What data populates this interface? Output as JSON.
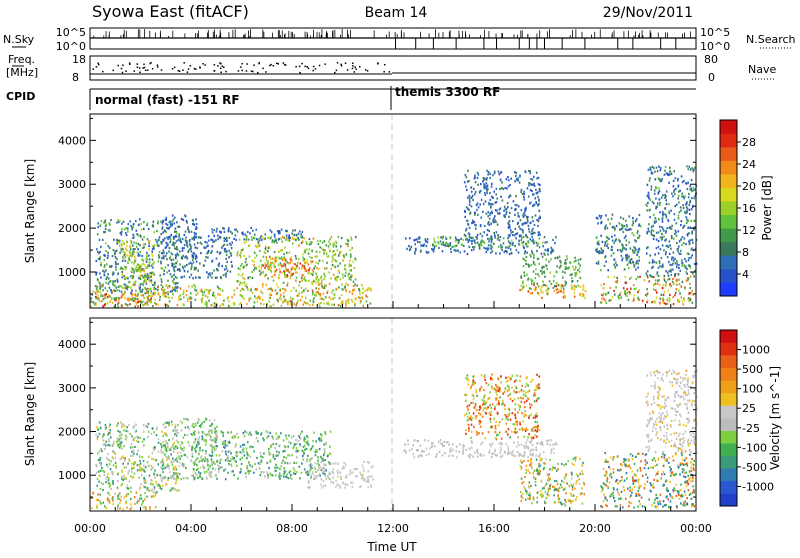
{
  "header": {
    "title": "Syowa East (fitACF)",
    "beam": "Beam 14",
    "date": "29/Nov/2011"
  },
  "status_panels": {
    "nsky_label": "N.Sky",
    "nsearch_label": "N.Search",
    "nsky_ticks": [
      "10^5",
      "10^0"
    ],
    "nsearch_ticks": [
      "10^5",
      "10^0"
    ],
    "freq_label_1": "Freq.",
    "freq_label_2": "[MHz]",
    "freq_ticks": [
      "18",
      "8"
    ],
    "nave_label": "Nave",
    "nave_ticks": [
      "80",
      "0"
    ],
    "cpid_label": "CPID",
    "cpid_segments": [
      {
        "label": "normal (fast) -151 RF",
        "start": "00:00",
        "end": "11:56"
      },
      {
        "label": "themis 3300 RF",
        "start": "11:56",
        "end": "24:00"
      }
    ]
  },
  "chart_data": [
    {
      "type": "heatmap",
      "name": "power",
      "ylabel": "Slant Range [km]",
      "yticks": [
        1000,
        2000,
        3000,
        4000
      ],
      "ylim": [
        180,
        4600
      ],
      "xlim": [
        0,
        24
      ],
      "colorbar": {
        "label": "Power [dB]",
        "ticks": [
          "4",
          "8",
          "12",
          "16",
          "20",
          "24",
          "28"
        ],
        "colors": [
          "#1e3cff",
          "#2a52c8",
          "#2f6fb8",
          "#3a7a5a",
          "#3f9a4a",
          "#5fc23a",
          "#9ad028",
          "#d8d81e",
          "#f2b41a",
          "#f08a1a",
          "#ea5a18",
          "#e02a14",
          "#d01010"
        ],
        "range": [
          0,
          32
        ]
      },
      "regions": [
        {
          "t0": 0.0,
          "t1": 2.6,
          "r0": 200,
          "r1": 500,
          "levels": [
            12,
            20,
            26,
            30
          ]
        },
        {
          "t0": 0.2,
          "t1": 3.5,
          "r0": 500,
          "r1": 2200,
          "levels": [
            4,
            6,
            8,
            10,
            14
          ]
        },
        {
          "t0": 1.2,
          "t1": 2.5,
          "r0": 700,
          "r1": 1700,
          "levels": [
            12,
            16,
            20
          ]
        },
        {
          "t0": 2.8,
          "t1": 4.2,
          "r0": 1300,
          "r1": 2300,
          "levels": [
            4,
            6,
            8
          ]
        },
        {
          "t0": 3.2,
          "t1": 5.6,
          "r0": 850,
          "r1": 1800,
          "levels": [
            4,
            6,
            8,
            10
          ]
        },
        {
          "t0": 4.6,
          "t1": 8.4,
          "r0": 1700,
          "r1": 2000,
          "levels": [
            4,
            6,
            8
          ]
        },
        {
          "t0": 5.8,
          "t1": 10.5,
          "r0": 700,
          "r1": 1800,
          "levels": [
            10,
            12,
            14,
            16,
            18,
            22
          ]
        },
        {
          "t0": 6.8,
          "t1": 8.8,
          "r0": 900,
          "r1": 1300,
          "levels": [
            20,
            24,
            28
          ]
        },
        {
          "t0": 0.0,
          "t1": 11.2,
          "r0": 200,
          "r1": 700,
          "levels": [
            12,
            16,
            20,
            24
          ]
        },
        {
          "t0": 12.3,
          "t1": 18.5,
          "r0": 1400,
          "r1": 1800,
          "levels": [
            4,
            6,
            8
          ]
        },
        {
          "t0": 13.5,
          "t1": 18.0,
          "r0": 1550,
          "r1": 1800,
          "levels": [
            10,
            12,
            14
          ]
        },
        {
          "t0": 14.8,
          "t1": 17.8,
          "r0": 1800,
          "r1": 3300,
          "levels": [
            4,
            6,
            8
          ]
        },
        {
          "t0": 17.0,
          "t1": 19.4,
          "r0": 600,
          "r1": 1400,
          "levels": [
            10,
            12,
            14
          ]
        },
        {
          "t0": 17.0,
          "t1": 19.6,
          "r0": 400,
          "r1": 700,
          "levels": [
            18,
            22,
            26
          ]
        },
        {
          "t0": 20.2,
          "t1": 23.9,
          "r0": 250,
          "r1": 900,
          "levels": [
            10,
            14,
            18,
            24,
            28
          ]
        },
        {
          "t0": 22.0,
          "t1": 24.0,
          "r0": 900,
          "r1": 3400,
          "levels": [
            4,
            6,
            8,
            12
          ]
        },
        {
          "t0": 20.0,
          "t1": 21.8,
          "r0": 1000,
          "r1": 2300,
          "levels": [
            4,
            8,
            12
          ]
        }
      ]
    },
    {
      "type": "heatmap",
      "name": "velocity",
      "ylabel": "Slant Range [km]",
      "yticks": [
        1000,
        2000,
        3000,
        4000
      ],
      "ylim": [
        180,
        4600
      ],
      "xlim": [
        0,
        24
      ],
      "xlabel": "Time UT",
      "xticks": [
        "00:00",
        "04:00",
        "08:00",
        "12:00",
        "16:00",
        "20:00",
        "00:00"
      ],
      "colorbar": {
        "label": "Velocity [m s^-1]",
        "ticks": [
          "1000",
          "500",
          "100",
          "25",
          "-25",
          "-100",
          "-500",
          "-1000"
        ],
        "colors": [
          "#2040c8",
          "#2a58d0",
          "#2f7ab0",
          "#3a9a7a",
          "#3fb050",
          "#7ed040",
          "#bcbcbc",
          "#c8c8c8",
          "#f0c020",
          "#f0a018",
          "#f08018",
          "#ea6018",
          "#e03010",
          "#d01010"
        ],
        "range": [
          -1200,
          1200
        ]
      },
      "regions": [
        {
          "t0": 0.0,
          "t1": 2.6,
          "r0": 200,
          "r1": 600,
          "levels": [
            -200,
            -400,
            300,
            600
          ]
        },
        {
          "t0": 0.2,
          "t1": 3.5,
          "r0": 600,
          "r1": 2200,
          "levels": [
            -100,
            -300,
            200,
            -600
          ]
        },
        {
          "t0": 2.8,
          "t1": 5.0,
          "r0": 900,
          "r1": 2300,
          "levels": [
            -200,
            -400,
            50
          ]
        },
        {
          "t0": 4.0,
          "t1": 9.5,
          "r0": 900,
          "r1": 2000,
          "levels": [
            -150,
            -300,
            -500,
            -700
          ]
        },
        {
          "t0": 8.6,
          "t1": 11.2,
          "r0": 700,
          "r1": 1300,
          "levels": [
            40,
            80,
            120
          ]
        },
        {
          "t0": 12.3,
          "t1": 18.5,
          "r0": 1400,
          "r1": 1800,
          "levels": [
            0,
            10,
            -10
          ]
        },
        {
          "t0": 14.8,
          "t1": 17.8,
          "r0": 1800,
          "r1": 3300,
          "levels": [
            300,
            600,
            900,
            -300
          ]
        },
        {
          "t0": 17.0,
          "t1": 19.6,
          "r0": 300,
          "r1": 1400,
          "levels": [
            -300,
            -600,
            200,
            500
          ]
        },
        {
          "t0": 20.2,
          "t1": 23.9,
          "r0": 250,
          "r1": 1500,
          "levels": [
            -400,
            300,
            800,
            -800
          ]
        },
        {
          "t0": 22.0,
          "t1": 24.0,
          "r0": 1500,
          "r1": 3400,
          "levels": [
            0,
            60,
            -60,
            300
          ]
        }
      ]
    }
  ]
}
